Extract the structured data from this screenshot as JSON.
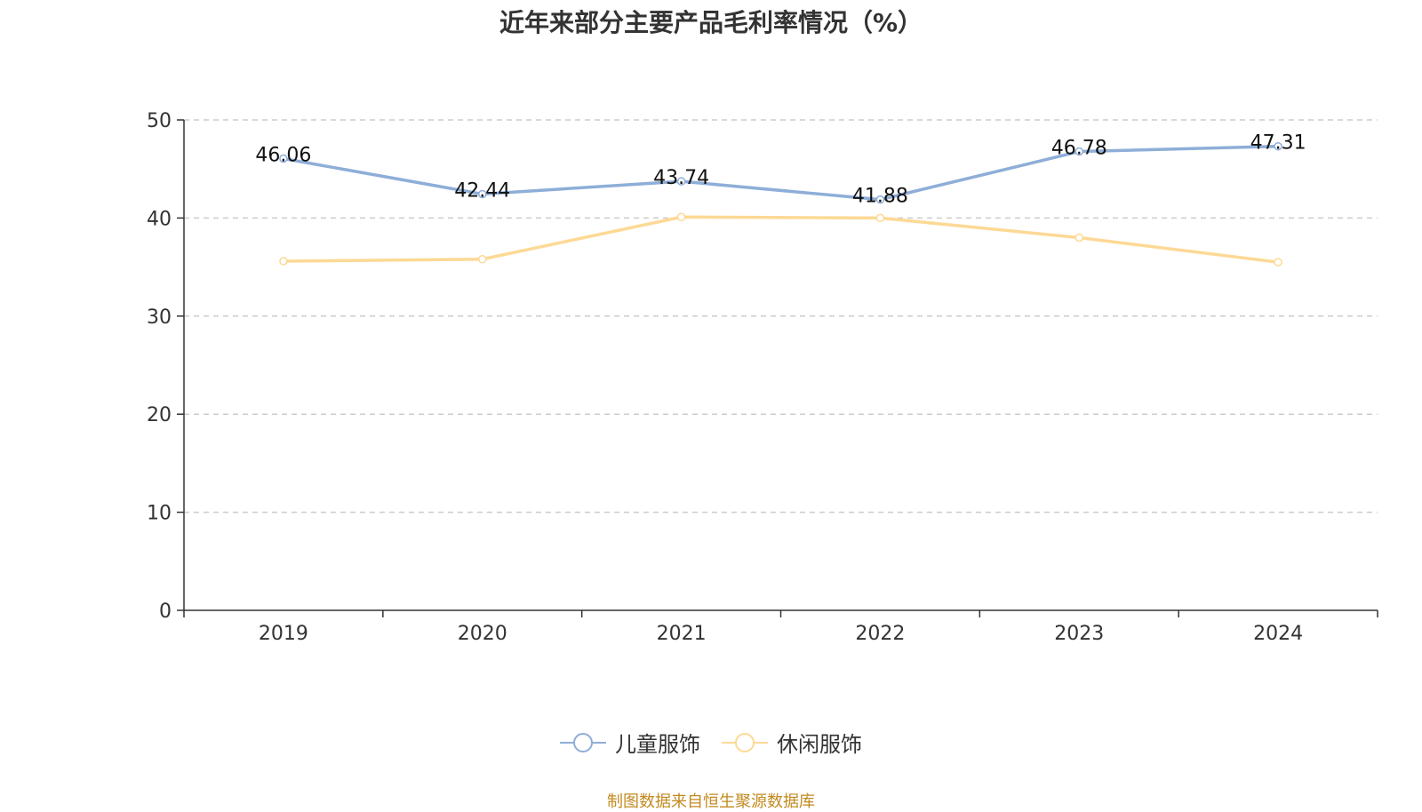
{
  "title": "近年来部分主要产品毛利率情况（%）",
  "source": "制图数据来自恒生聚源数据库",
  "chart_data": {
    "type": "line",
    "title": "近年来部分主要产品毛利率情况（%）",
    "categories": [
      "2019",
      "2020",
      "2021",
      "2022",
      "2023",
      "2024"
    ],
    "ylim": [
      0,
      50
    ],
    "yticks": [
      0,
      10,
      20,
      30,
      40,
      50
    ],
    "grid": true,
    "legend_position": "bottom",
    "series": [
      {
        "name": "儿童服饰",
        "color": "#8eaed8",
        "values": [
          46.06,
          42.44,
          43.74,
          41.88,
          46.78,
          47.31
        ],
        "labels": [
          "46.06",
          "42.44",
          "43.74",
          "41.88",
          "46.78",
          "47.31"
        ]
      },
      {
        "name": "休闲服饰",
        "color": "#fdd995",
        "values": [
          35.6,
          35.8,
          40.1,
          40.0,
          38.0,
          35.5
        ]
      }
    ]
  }
}
